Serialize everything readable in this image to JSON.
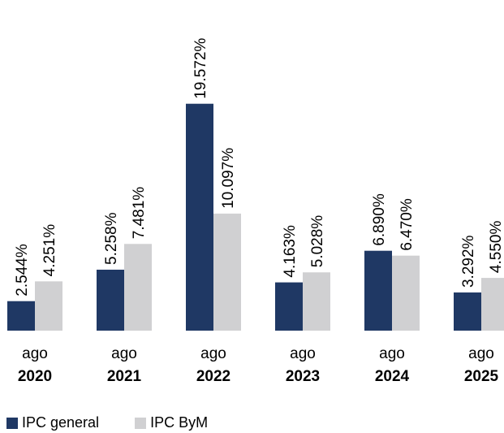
{
  "chart_data": {
    "type": "bar",
    "categories": [
      {
        "month": "ago",
        "year": "2020"
      },
      {
        "month": "ago",
        "year": "2021"
      },
      {
        "month": "ago",
        "year": "2022"
      },
      {
        "month": "ago",
        "year": "2023"
      },
      {
        "month": "ago",
        "year": "2024"
      },
      {
        "month": "ago",
        "year": "2025"
      }
    ],
    "series": [
      {
        "name": "IPC general",
        "color": "#1f3864",
        "values": [
          2.544,
          5.258,
          19.572,
          4.163,
          6.89,
          3.292
        ],
        "labels": [
          "2.544%",
          "5.258%",
          "19.572%",
          "4.163%",
          "6.890%",
          "3.292%"
        ]
      },
      {
        "name": "IPC ByM",
        "color": "#d0d0d2",
        "values": [
          4.251,
          7.481,
          10.097,
          5.028,
          6.47,
          4.55
        ],
        "labels": [
          "4.251%",
          "7.481%",
          "10.097%",
          "5.028%",
          "6.470%",
          "4.550%"
        ]
      }
    ],
    "legend_position": "bottom-left",
    "grid": false
  }
}
